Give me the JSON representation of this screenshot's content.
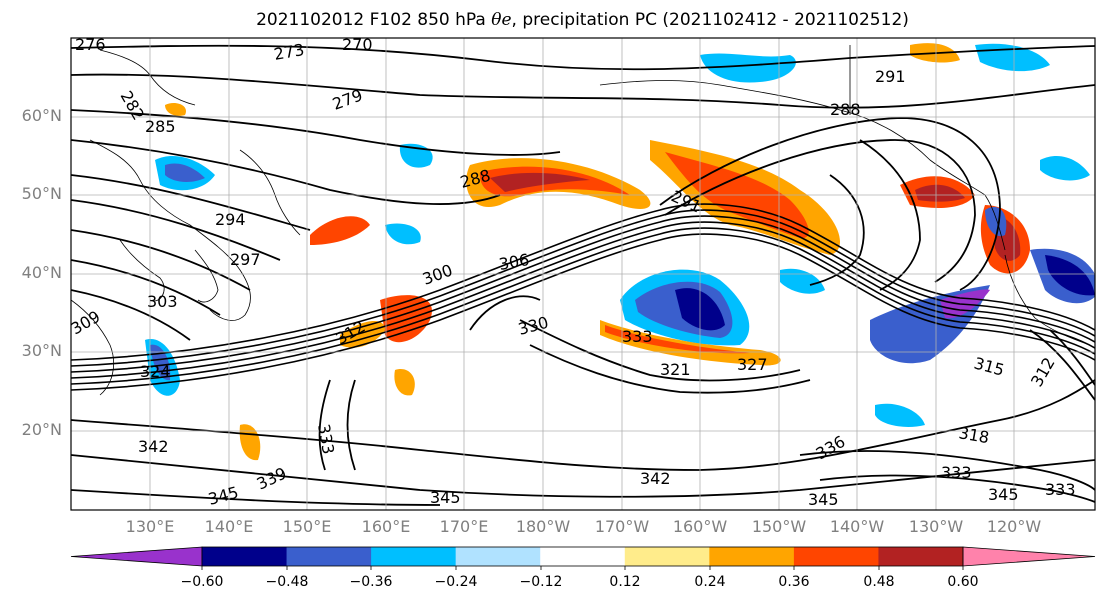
{
  "title": {
    "prefix": "2021102012 F102 850 hPa ",
    "symbol": "θe",
    "suffix": ", precipitation PC (2021102412 - 2021102512)"
  },
  "lat_ticks": [
    "60°N",
    "50°N",
    "40°N",
    "30°N",
    "20°N"
  ],
  "lon_ticks": [
    "130°E",
    "140°E",
    "150°E",
    "160°E",
    "170°E",
    "180°W",
    "170°W",
    "160°W",
    "150°W",
    "140°W",
    "130°W",
    "120°W"
  ],
  "contour_labels": [
    "276",
    "270",
    "273",
    "282",
    "279",
    "285",
    "291",
    "288",
    "288",
    "294",
    "297",
    "291",
    "300",
    "306",
    "303",
    "309",
    "312",
    "330",
    "333",
    "324",
    "321",
    "327",
    "315",
    "312",
    "318",
    "333",
    "342",
    "336",
    "342",
    "345",
    "339",
    "345",
    "345",
    "333",
    "345",
    "333"
  ],
  "colorbar": {
    "colors": [
      "#9932cc",
      "#00008b",
      "#3a5fcd",
      "#00bfff",
      "#b0e2ff",
      "#ffffff",
      "#ffec8b",
      "#ffa500",
      "#ff4500",
      "#b22222",
      "#ff82ab"
    ],
    "labels": [
      "−0.60",
      "−0.48",
      "−0.36",
      "−0.24",
      "−0.12",
      "0.12",
      "0.24",
      "0.36",
      "0.48",
      "0.60"
    ]
  }
}
